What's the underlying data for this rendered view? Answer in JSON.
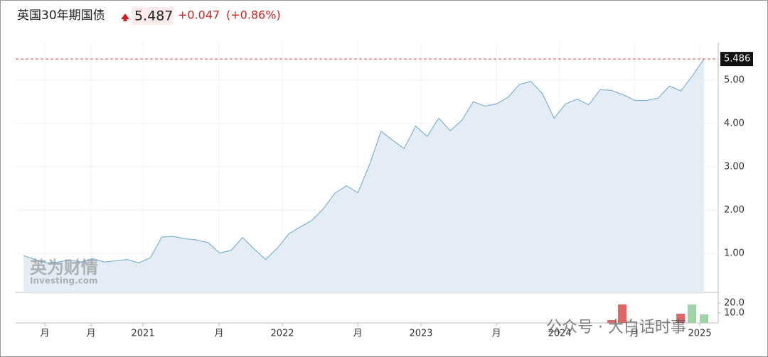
{
  "header": {
    "title": "英国30年期国债",
    "price": "5.487",
    "change": "+0.047",
    "change_pct": "(+0.86%)"
  },
  "watermarks": [
    "英为财情",
    "Investing.com",
    "公众号 · 大白话时事"
  ],
  "chart_data": [
    {
      "type": "area",
      "color": "#7fb2d6",
      "fill": "#e4edf5",
      "grid": true,
      "x": [
        0,
        1,
        2,
        3,
        4,
        5,
        6,
        7,
        8,
        9,
        10,
        11,
        12,
        13,
        14,
        15,
        16,
        17,
        18,
        19,
        20,
        21,
        22,
        23,
        24,
        25,
        26,
        27,
        28,
        29,
        30,
        31,
        32,
        33,
        34,
        35,
        36,
        37,
        38,
        39,
        40,
        41,
        42,
        43,
        44,
        45,
        46,
        47,
        48,
        49,
        50,
        51,
        52,
        53,
        54,
        55,
        56,
        57,
        58,
        59
      ],
      "series": [
        {
          "name": "英国30年期国债",
          "color": "#7fb2d6",
          "values": [
            0.95,
            0.86,
            0.78,
            0.8,
            0.85,
            0.8,
            0.88,
            0.8,
            0.83,
            0.86,
            0.78,
            0.9,
            1.38,
            1.39,
            1.34,
            1.31,
            1.25,
            1.01,
            1.07,
            1.37,
            1.1,
            0.86,
            1.12,
            1.45,
            1.61,
            1.76,
            2.03,
            2.39,
            2.56,
            2.4,
            3.05,
            3.82,
            3.61,
            3.42,
            3.94,
            3.7,
            4.12,
            3.83,
            4.07,
            4.5,
            4.4,
            4.45,
            4.6,
            4.9,
            4.97,
            4.68,
            4.12,
            4.45,
            4.56,
            4.43,
            4.78,
            4.76,
            4.66,
            4.53,
            4.53,
            4.58,
            4.86,
            4.75,
            5.1,
            5.486
          ]
        }
      ],
      "xlim": [
        -0.68,
        60.23
      ],
      "xticks": [
        {
          "value": 1.85,
          "label": "月"
        },
        {
          "value": 5.86,
          "label": "月"
        },
        {
          "value": 10.36,
          "label": "2021"
        },
        {
          "value": 16.95,
          "label": "月"
        },
        {
          "value": 22.44,
          "label": "2022"
        },
        {
          "value": 28.98,
          "label": "月"
        },
        {
          "value": 34.46,
          "label": "2023"
        },
        {
          "value": 41.0,
          "label": "月"
        },
        {
          "value": 46.49,
          "label": "2024"
        },
        {
          "value": 52.96,
          "label": "月"
        },
        {
          "value": 58.63,
          "label": "2025"
        }
      ],
      "ylim": [
        0.1,
        5.75
      ],
      "yticks": [
        {
          "value": 1,
          "label": "1.00"
        },
        {
          "value": 2,
          "label": "2.00"
        },
        {
          "value": 3,
          "label": "3.00"
        },
        {
          "value": 4,
          "label": "4.00"
        },
        {
          "value": 5,
          "label": "5.00"
        }
      ]
    },
    {
      "type": "bar",
      "x": [
        50.99,
        51.91,
        56.97,
        57.95,
        59
      ],
      "values": [
        2.9,
        18.6,
        9.3,
        18.6,
        8.6
      ],
      "colors": [
        "#e06666",
        "#e06666",
        "#e06666",
        "#9fd4a8",
        "#9fd4a8"
      ],
      "xlim": [
        -0.68,
        60.23
      ],
      "ylim": [
        0,
        30
      ],
      "yticks": [
        {
          "value": 10,
          "label": "10.0"
        },
        {
          "value": 20,
          "label": "20.0"
        }
      ]
    }
  ]
}
